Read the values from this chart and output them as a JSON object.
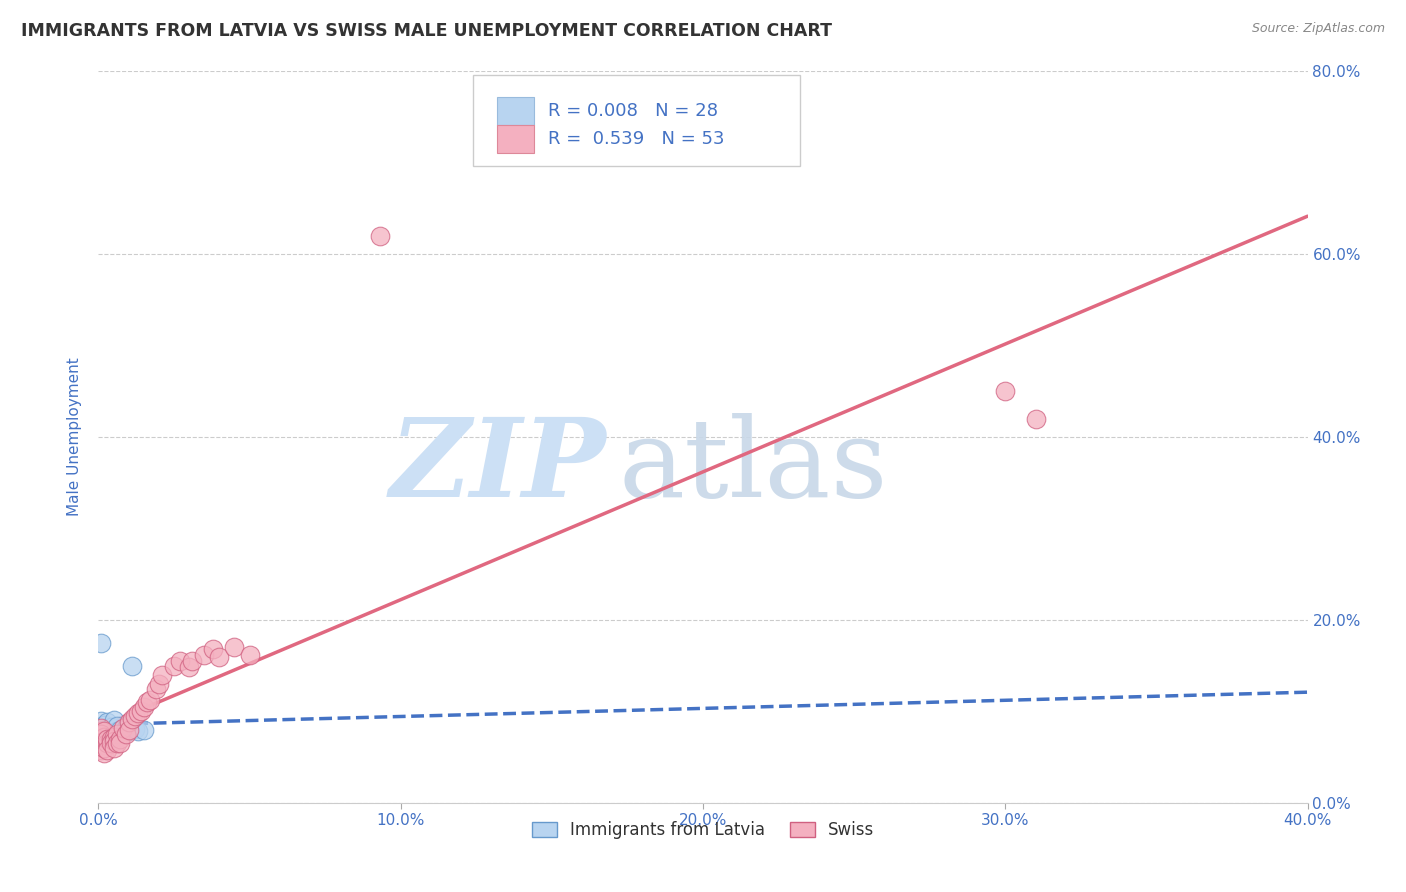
{
  "title": "IMMIGRANTS FROM LATVIA VS SWISS MALE UNEMPLOYMENT CORRELATION CHART",
  "source_text": "Source: ZipAtlas.com",
  "ylabel": "Male Unemployment",
  "xlim": [
    0.0,
    0.4
  ],
  "ylim": [
    0.0,
    0.8
  ],
  "xticks": [
    0.0,
    0.1,
    0.2,
    0.3,
    0.4
  ],
  "yticks": [
    0.0,
    0.2,
    0.4,
    0.6,
    0.8
  ],
  "xtick_labels": [
    "0.0%",
    "10.0%",
    "20.0%",
    "30.0%",
    "40.0%"
  ],
  "ytick_labels": [
    "0.0%",
    "20.0%",
    "40.0%",
    "60.0%",
    "80.0%"
  ],
  "series": [
    {
      "name": "Immigrants from Latvia",
      "R": 0.008,
      "N": 28,
      "color": "#b8d4f0",
      "edge_color": "#6699cc",
      "line_color": "#4472C4",
      "line_style": "--",
      "x": [
        0.001,
        0.001,
        0.001,
        0.001,
        0.001,
        0.002,
        0.002,
        0.002,
        0.002,
        0.003,
        0.003,
        0.003,
        0.004,
        0.004,
        0.005,
        0.005,
        0.006,
        0.006,
        0.007,
        0.008,
        0.009,
        0.01,
        0.01,
        0.011,
        0.012,
        0.013,
        0.015,
        0.001
      ],
      "y": [
        0.075,
        0.082,
        0.09,
        0.072,
        0.068,
        0.078,
        0.085,
        0.075,
        0.08,
        0.082,
        0.076,
        0.088,
        0.079,
        0.083,
        0.077,
        0.091,
        0.078,
        0.084,
        0.08,
        0.075,
        0.082,
        0.079,
        0.085,
        0.15,
        0.081,
        0.078,
        0.08,
        0.175
      ]
    },
    {
      "name": "Swiss",
      "R": 0.539,
      "N": 53,
      "color": "#f4b0c0",
      "edge_color": "#d06080",
      "line_color": "#e06880",
      "line_style": "-",
      "x": [
        0.001,
        0.001,
        0.001,
        0.001,
        0.001,
        0.001,
        0.001,
        0.001,
        0.001,
        0.002,
        0.002,
        0.002,
        0.002,
        0.002,
        0.002,
        0.003,
        0.003,
        0.003,
        0.004,
        0.004,
        0.005,
        0.005,
        0.005,
        0.006,
        0.006,
        0.007,
        0.007,
        0.008,
        0.009,
        0.01,
        0.01,
        0.011,
        0.012,
        0.013,
        0.014,
        0.015,
        0.016,
        0.017,
        0.019,
        0.02,
        0.021,
        0.025,
        0.027,
        0.03,
        0.031,
        0.035,
        0.038,
        0.04,
        0.045,
        0.05,
        0.093,
        0.3,
        0.31
      ],
      "y": [
        0.072,
        0.068,
        0.078,
        0.082,
        0.075,
        0.07,
        0.065,
        0.06,
        0.058,
        0.072,
        0.068,
        0.063,
        0.079,
        0.055,
        0.06,
        0.065,
        0.07,
        0.058,
        0.07,
        0.065,
        0.072,
        0.068,
        0.06,
        0.075,
        0.065,
        0.07,
        0.065,
        0.082,
        0.075,
        0.088,
        0.08,
        0.092,
        0.095,
        0.098,
        0.1,
        0.105,
        0.11,
        0.112,
        0.125,
        0.13,
        0.14,
        0.15,
        0.155,
        0.148,
        0.155,
        0.162,
        0.168,
        0.16,
        0.17,
        0.162,
        0.62,
        0.45,
        0.42
      ]
    }
  ],
  "legend_box_colors": [
    "#b8d4f0",
    "#f4b0c0"
  ],
  "legend_R_values": [
    "0.008",
    "0.539"
  ],
  "legend_N_values": [
    "28",
    "53"
  ],
  "background_color": "#ffffff",
  "grid_color": "#cccccc",
  "title_color": "#333333",
  "axis_label_color": "#4472C4",
  "tick_color": "#4472C4",
  "watermark_zip_color": "#cce0f5",
  "watermark_atlas_color": "#c8d8e8"
}
